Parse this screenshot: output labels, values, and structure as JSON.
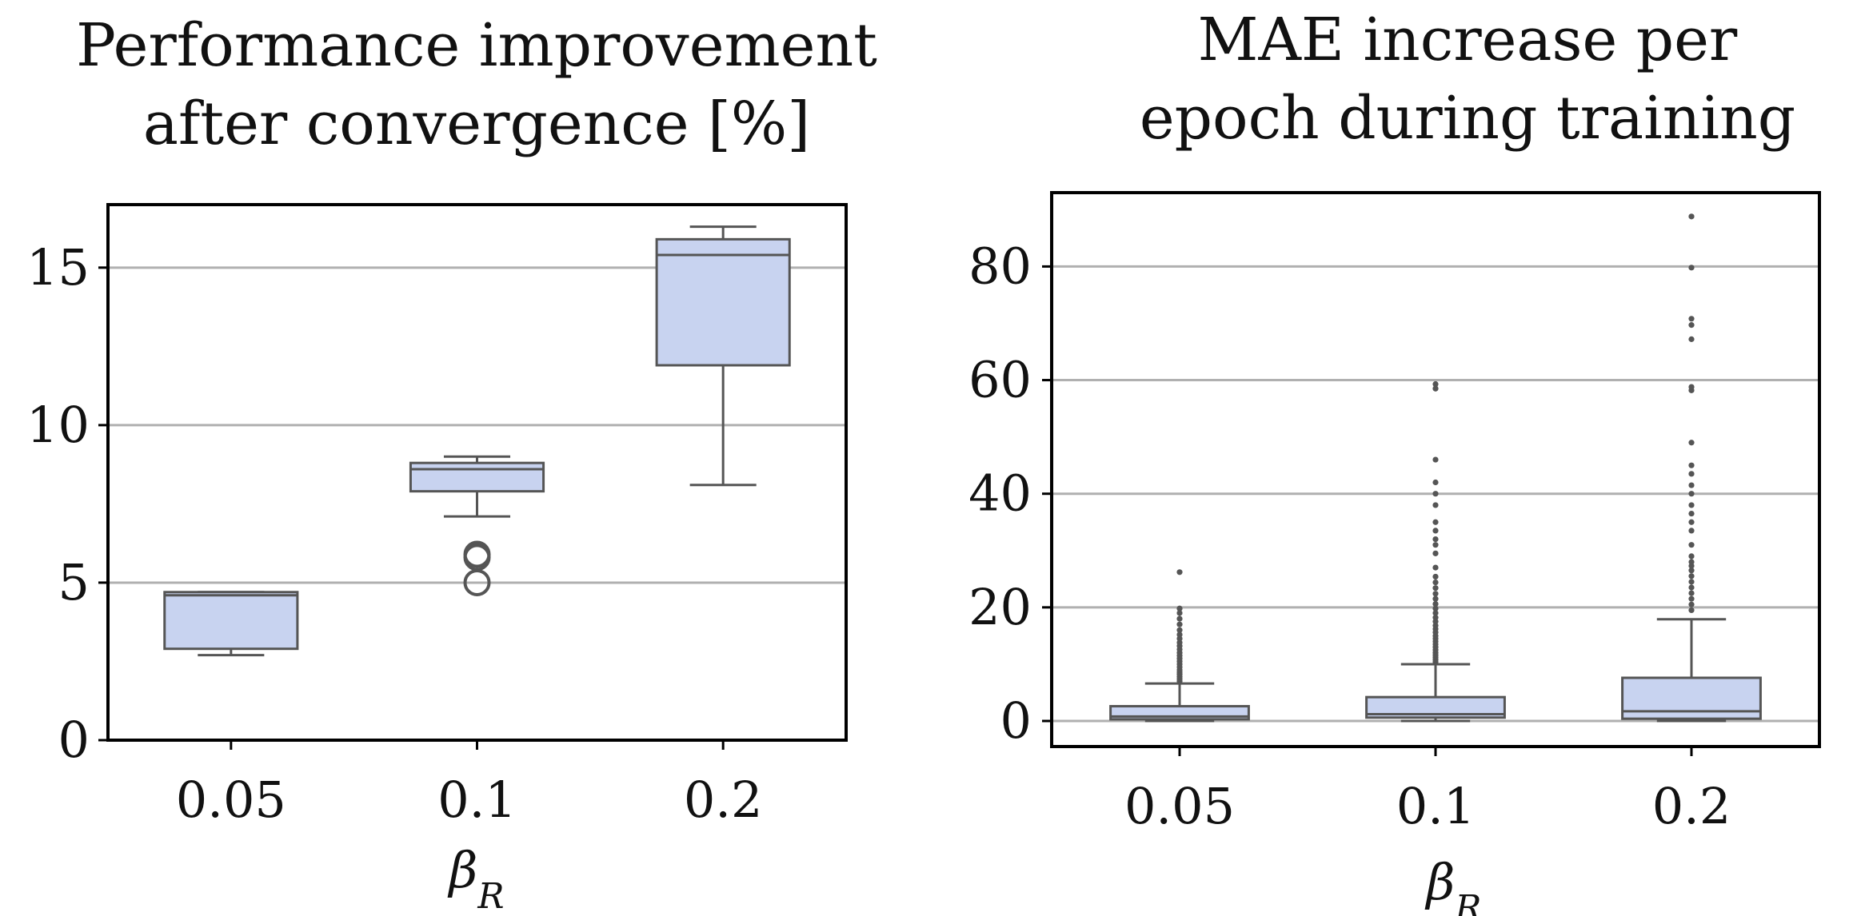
{
  "colors": {
    "box_fill": "#c8d3f0",
    "box_edge": "#555555",
    "grid": "#b0b0b0"
  },
  "chart_data": [
    {
      "type": "box",
      "title_lines": [
        "Performance improvement",
        "after convergence [%]"
      ],
      "xlabel": "βR",
      "xlabel_base": "β",
      "xlabel_sub": "R",
      "categories": [
        "0.05",
        "0.1",
        "0.2"
      ],
      "ylim": [
        0,
        17
      ],
      "yticks": [
        0,
        5,
        10,
        15
      ],
      "ytick_labels": [
        "0",
        "5",
        "10",
        "15"
      ],
      "grid": true,
      "flier_style": "ring",
      "boxes": [
        {
          "category": "0.05",
          "whislo": 2.7,
          "q1": 2.9,
          "med": 4.6,
          "q3": 4.7,
          "whishi": 4.7,
          "fliers": []
        },
        {
          "category": "0.1",
          "whislo": 7.1,
          "q1": 7.9,
          "med": 8.6,
          "q3": 8.8,
          "whishi": 9.0,
          "fliers": [
            5.0,
            5.8,
            5.9
          ]
        },
        {
          "category": "0.2",
          "whislo": 8.1,
          "q1": 11.9,
          "med": 15.4,
          "q3": 15.9,
          "whishi": 16.3,
          "fliers": []
        }
      ]
    },
    {
      "type": "box",
      "title_lines": [
        "MAE increase per",
        "epoch during training"
      ],
      "xlabel": "βR",
      "xlabel_base": "β",
      "xlabel_sub": "R",
      "categories": [
        "0.05",
        "0.1",
        "0.2"
      ],
      "ylim": [
        -4.5,
        93
      ],
      "yticks": [
        0,
        20,
        40,
        60,
        80
      ],
      "ytick_labels": [
        "0",
        "20",
        "40",
        "60",
        "80"
      ],
      "grid": true,
      "flier_style": "dot",
      "boxes": [
        {
          "category": "0.05",
          "whislo": 0,
          "q1": 0.3,
          "med": 0.8,
          "q3": 2.6,
          "whishi": 6.6,
          "fliers": [
            7.0,
            7.4,
            7.8,
            8.2,
            8.6,
            9.0,
            9.5,
            10.0,
            10.5,
            11.0,
            11.5,
            12.0,
            12.6,
            13.2,
            13.8,
            14.5,
            15.2,
            16.0,
            17.0,
            18.0,
            19.0,
            19.8,
            26.2
          ]
        },
        {
          "category": "0.1",
          "whislo": 0,
          "q1": 0.6,
          "med": 1.2,
          "q3": 4.2,
          "whishi": 10.0,
          "fliers": [
            10.4,
            10.8,
            11.2,
            11.6,
            12.0,
            12.5,
            13.0,
            13.5,
            14.0,
            14.5,
            15.0,
            15.6,
            16.2,
            16.8,
            17.5,
            18.2,
            19.0,
            19.8,
            20.6,
            21.5,
            22.4,
            23.4,
            24.4,
            25.4,
            27.0,
            29.5,
            31.0,
            32.0,
            33.5,
            35.0,
            38.0,
            40.0,
            42.0,
            46.0,
            58.5,
            59.3
          ]
        },
        {
          "category": "0.2",
          "whislo": 0,
          "q1": 0.4,
          "med": 1.7,
          "q3": 7.6,
          "whishi": 17.9,
          "fliers": [
            19.5,
            20.5,
            21.5,
            22.5,
            23.5,
            24.5,
            25.5,
            26.5,
            27.3,
            28.0,
            29.0,
            31.0,
            33.5,
            35.0,
            36.5,
            38.0,
            40.0,
            41.5,
            43.5,
            45.0,
            49.0,
            58.2,
            58.8,
            67.2,
            69.7,
            70.8,
            79.8,
            88.8
          ]
        }
      ]
    }
  ]
}
